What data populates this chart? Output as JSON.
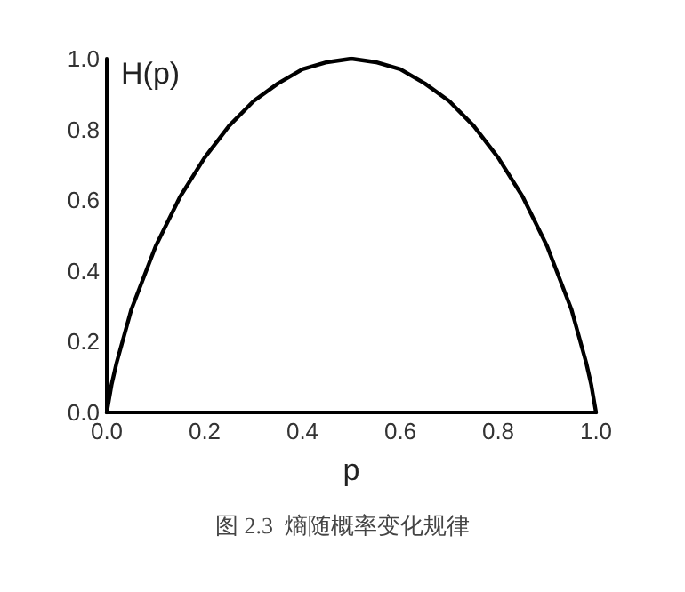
{
  "chart_data": {
    "type": "line",
    "xlabel": "p",
    "ylabel": "H(p)",
    "annotations": [
      "图 2.3  熵随概率变化规律"
    ],
    "x": [
      0,
      0.01,
      0.02,
      0.05,
      0.1,
      0.15,
      0.2,
      0.25,
      0.3,
      0.35,
      0.4,
      0.45,
      0.5,
      0.55,
      0.6,
      0.65,
      0.7,
      0.75,
      0.8,
      0.85,
      0.9,
      0.95,
      0.98,
      0.99,
      1
    ],
    "series": [
      {
        "color": "#000000",
        "values": [
          0,
          0.08,
          0.14,
          0.29,
          0.47,
          0.61,
          0.72,
          0.81,
          0.88,
          0.93,
          0.97,
          0.99,
          1,
          0.99,
          0.97,
          0.93,
          0.88,
          0.81,
          0.72,
          0.61,
          0.47,
          0.29,
          0.14,
          0.08,
          0
        ]
      }
    ],
    "xlim": [
      0,
      1
    ],
    "ylim": [
      0,
      1
    ],
    "xticks": [
      {
        "value": 0,
        "label": "0.0"
      },
      {
        "value": 0.2,
        "label": "0.2"
      },
      {
        "value": 0.4,
        "label": "0.4"
      },
      {
        "value": 0.6,
        "label": "0.6"
      },
      {
        "value": 0.8,
        "label": "0.8"
      },
      {
        "value": 1,
        "label": "1.0"
      }
    ],
    "yticks": [
      {
        "value": 0,
        "label": "0.0"
      },
      {
        "value": 0.2,
        "label": "0.2"
      },
      {
        "value": 0.4,
        "label": "0.4"
      },
      {
        "value": 0.6,
        "label": "0.6"
      },
      {
        "value": 0.8,
        "label": "0.8"
      },
      {
        "value": 1,
        "label": "1.0"
      }
    ],
    "grid": false,
    "marker": "none",
    "line_style": "solid"
  }
}
